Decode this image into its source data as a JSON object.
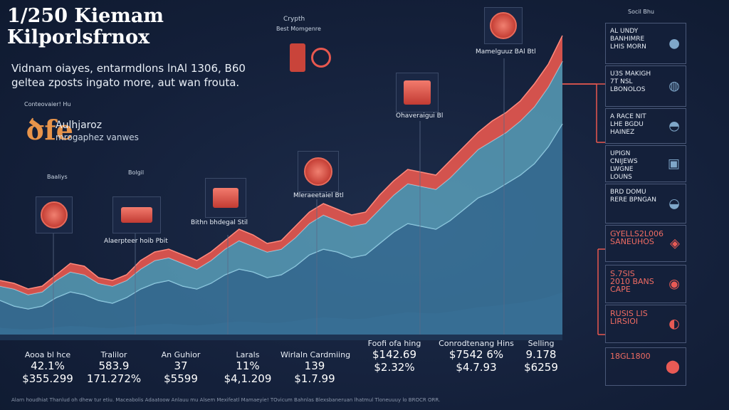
{
  "header": {
    "title_line1": "1/250 Kiemam",
    "title_line2": "Kilporlsfrnox",
    "subtitle_line1": "Vidnam oiayes, entarmdlons lnAl 1306, B60",
    "subtitle_line2": "geltea zposts ingato more, aut wan frouta.",
    "small_label": "Conteovaier! Hu",
    "accent_symbol": "ծfe",
    "accent_line1": "Aulhjaroz",
    "accent_line2": "mrogaphez vanwes"
  },
  "annotations": {
    "crypto_label": "Crypth",
    "crypto_sub": "Best Momgenre",
    "top_caption": "Mamelguuz BAl Btl",
    "mid_caption": "Ohaveraigui Bl",
    "coin2_caption": "Mleraeetaiel Btl",
    "brick_caption": "Bithn bhdegal Stil",
    "left_caption": "Alaerpteer hoib Pbit",
    "small_a": "Baaliys",
    "small_b": "Bolgil"
  },
  "stats": [
    {
      "label": "Aooa bl hce",
      "v1": "42.1%",
      "v2": "$355.299"
    },
    {
      "label": "Tralilor",
      "v1": "583.9",
      "v2": "171.272%"
    },
    {
      "label": "An Guhior",
      "v1": "37",
      "v2": "$5599"
    },
    {
      "label": "Larals",
      "v1": "11%",
      "v2": "$4,1.209"
    },
    {
      "label": "Wirlaln Cardmiing",
      "v1": "139",
      "v2": "$1.7.99"
    },
    {
      "label": "Foofi ofa hing",
      "v1": "$142.69",
      "v2": "$2.32%"
    },
    {
      "label": "Conrodtenang Hins",
      "v1": "$7542 6%",
      "v2": "$4.7.93"
    },
    {
      "label": "Selling",
      "v1": "9.178",
      "v2": "$6259"
    }
  ],
  "sidebar": {
    "heading": "Socil Bhu",
    "panels": [
      {
        "text": "AL UNDY BANHIMRE LHIS MORN",
        "glyph": "apple-icon",
        "red": false
      },
      {
        "text": "U3S MAKIGH 7T NSL LBONOLOS",
        "glyph": "jar-icon",
        "red": false
      },
      {
        "text": "A RACE NIT LHE BGDU HAINEZ",
        "glyph": "cup-icon",
        "red": false
      },
      {
        "text": "UPIGN CNIJEWS LWGNE LOUNS",
        "glyph": "lunchbox-icon",
        "red": false
      },
      {
        "text": "BRD DOMU RERE BPNGAN",
        "glyph": "pot-icon",
        "red": false
      },
      {
        "text": "GYELLS2L006 SANEUHOS",
        "glyph": "bag-icon",
        "red": true
      },
      {
        "text": "S.7SIS 2010 BANS CAPE",
        "glyph": "basket-icon",
        "red": true
      },
      {
        "text": "RUSIS LIS LIRSIOI",
        "glyph": "kettle-icon",
        "red": true
      },
      {
        "text": "18GL1800",
        "glyph": "coin-icon",
        "red": true
      }
    ]
  },
  "footer": {
    "text": "Alarn houdhiat Thanlud oh dhew tur etiu. Maceabolis Adaatoow Anlauu mu Alsem Mexifeatl Mamaeyie! TOvicum Bahnlas Blexsbaneruan lhatmul Tloneuuuy lo BROCR ORR."
  },
  "colors": {
    "background": "#14203a",
    "accent_red": "#e8584f",
    "accent_orange": "#e8944a",
    "stream_blue": "#3f7fa6",
    "stream_teal": "#5fa9c4",
    "stream_dark": "#1e3554"
  },
  "chart_data": {
    "type": "area",
    "title": "1/250 Kiemam",
    "x": [
      0,
      1,
      2,
      3,
      4,
      5,
      6,
      7,
      8,
      9,
      10,
      11,
      12,
      13,
      14,
      15,
      16,
      17,
      18,
      19,
      20,
      21,
      22,
      23,
      24,
      25,
      26,
      27,
      28,
      29,
      30,
      31,
      32,
      33,
      34,
      35,
      36,
      37,
      38,
      39,
      40
    ],
    "series": [
      {
        "values": [
          1.2,
          1.0,
          0.9,
          1.0,
          1.3,
          1.5,
          1.4,
          1.2,
          1.1,
          1.3,
          1.6,
          1.8,
          1.9,
          1.7,
          1.6,
          1.8,
          2.1,
          2.3,
          2.2,
          2.0,
          2.1,
          2.4,
          2.8,
          3.0,
          2.9,
          2.7,
          2.8,
          3.2,
          3.6,
          3.9,
          3.8,
          3.7,
          4.0,
          4.4,
          4.8,
          5.0,
          5.3,
          5.6,
          6.0,
          6.6,
          7.4
        ]
      },
      {
        "values": [
          0.5,
          0.6,
          0.5,
          0.5,
          0.6,
          0.7,
          0.7,
          0.6,
          0.6,
          0.6,
          0.7,
          0.8,
          0.8,
          0.8,
          0.7,
          0.8,
          0.9,
          1.0,
          0.9,
          0.9,
          0.9,
          1.0,
          1.1,
          1.2,
          1.1,
          1.1,
          1.1,
          1.2,
          1.3,
          1.4,
          1.4,
          1.4,
          1.5,
          1.6,
          1.7,
          1.8,
          1.8,
          1.9,
          2.0,
          2.1,
          2.2
        ]
      },
      {
        "values": [
          0.2,
          0.2,
          0.2,
          0.2,
          0.2,
          0.3,
          0.3,
          0.2,
          0.2,
          0.2,
          0.3,
          0.3,
          0.3,
          0.3,
          0.3,
          0.3,
          0.3,
          0.4,
          0.4,
          0.3,
          0.3,
          0.4,
          0.4,
          0.4,
          0.4,
          0.4,
          0.4,
          0.5,
          0.5,
          0.5,
          0.5,
          0.5,
          0.6,
          0.6,
          0.6,
          0.7,
          0.7,
          0.7,
          0.8,
          0.8,
          0.9
        ]
      }
    ],
    "ylim": [
      0,
      11
    ],
    "grid": false,
    "legend": "none"
  }
}
